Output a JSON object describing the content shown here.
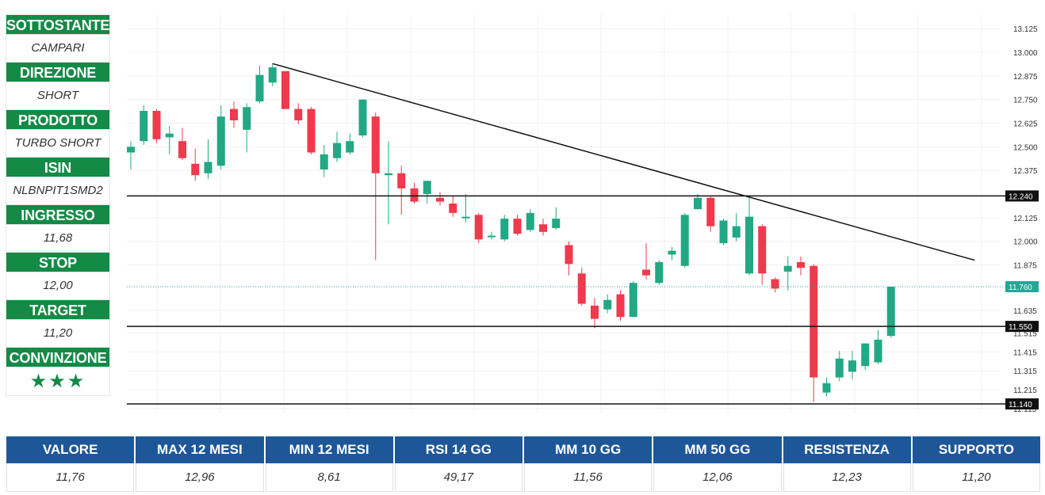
{
  "sidebar": {
    "items": [
      {
        "label": "SOTTOSTANTE",
        "value": "CAMPARI"
      },
      {
        "label": "DIREZIONE",
        "value": "SHORT"
      },
      {
        "label": "PRODOTTO",
        "value": "TURBO SHORT"
      },
      {
        "label": "ISIN",
        "value": "NLBNPIT1SMD2"
      },
      {
        "label": "INGRESSO",
        "value": "11,68"
      },
      {
        "label": "STOP",
        "value": "12,00"
      },
      {
        "label": "TARGET",
        "value": "11,20"
      },
      {
        "label": "CONVINZIONE",
        "value": "★★★"
      }
    ]
  },
  "stats": [
    {
      "label": "VALORE",
      "value": "11,76"
    },
    {
      "label": "MAX 12 MESI",
      "value": "12,96"
    },
    {
      "label": "MIN 12 MESI",
      "value": "8,61"
    },
    {
      "label": "RSI 14 GG",
      "value": "49,17"
    },
    {
      "label": "MM 10 GG",
      "value": "11,56"
    },
    {
      "label": "MM 50 GG",
      "value": "12,06"
    },
    {
      "label": "RESISTENZA",
      "value": "12,23"
    },
    {
      "label": "SUPPORTO",
      "value": "11,20"
    }
  ],
  "colors": {
    "up": "#22a884",
    "down": "#f0394c",
    "label_bg": "#138a46",
    "header_bg": "#1e5798"
  },
  "chart_data": {
    "type": "candlestick",
    "y_ticks": [
      "13.125",
      "13.000",
      "12.875",
      "12.750",
      "12.625",
      "12.500",
      "12.375",
      "12.125",
      "12.000",
      "11.875",
      "11.635",
      "11.515",
      "11.415",
      "11.315",
      "11.215",
      "11.115"
    ],
    "ylim": [
      11.1,
      13.15
    ],
    "grid": true,
    "price_lines": [
      {
        "label": "12.240",
        "value": 12.24,
        "style": "solid"
      },
      {
        "label": "11.760",
        "value": 11.76,
        "style": "dotted"
      },
      {
        "label": "11.550",
        "value": 11.55,
        "style": "solid"
      },
      {
        "label": "11.140",
        "value": 11.14,
        "style": "solid"
      }
    ],
    "trendline": [
      {
        "i": 11,
        "v": 12.94
      },
      {
        "i": 65.5,
        "v": 11.9
      }
    ],
    "candles": [
      {
        "o": 12.47,
        "h": 12.53,
        "l": 12.38,
        "c": 12.5
      },
      {
        "o": 12.53,
        "h": 12.72,
        "l": 12.51,
        "c": 12.69
      },
      {
        "o": 12.69,
        "h": 12.7,
        "l": 12.52,
        "c": 12.54
      },
      {
        "o": 12.55,
        "h": 12.61,
        "l": 12.46,
        "c": 12.57
      },
      {
        "o": 12.53,
        "h": 12.6,
        "l": 12.43,
        "c": 12.44
      },
      {
        "o": 12.41,
        "h": 12.49,
        "l": 12.32,
        "c": 12.35
      },
      {
        "o": 12.36,
        "h": 12.54,
        "l": 12.33,
        "c": 12.42
      },
      {
        "o": 12.4,
        "h": 12.72,
        "l": 12.38,
        "c": 12.66
      },
      {
        "o": 12.7,
        "h": 12.74,
        "l": 12.6,
        "c": 12.64
      },
      {
        "o": 12.59,
        "h": 12.73,
        "l": 12.47,
        "c": 12.71
      },
      {
        "o": 12.74,
        "h": 12.93,
        "l": 12.73,
        "c": 12.88
      },
      {
        "o": 12.84,
        "h": 12.94,
        "l": 12.82,
        "c": 12.92
      },
      {
        "o": 12.9,
        "h": 12.9,
        "l": 12.72,
        "c": 12.7
      },
      {
        "o": 12.7,
        "h": 12.73,
        "l": 12.62,
        "c": 12.64
      },
      {
        "o": 12.7,
        "h": 12.71,
        "l": 12.46,
        "c": 12.47
      },
      {
        "o": 12.38,
        "h": 12.51,
        "l": 12.34,
        "c": 12.46
      },
      {
        "o": 12.44,
        "h": 12.58,
        "l": 12.42,
        "c": 12.52
      },
      {
        "o": 12.47,
        "h": 12.57,
        "l": 12.46,
        "c": 12.53
      },
      {
        "o": 12.56,
        "h": 12.75,
        "l": 12.55,
        "c": 12.75
      },
      {
        "o": 12.66,
        "h": 12.68,
        "l": 11.9,
        "c": 12.36
      },
      {
        "o": 12.35,
        "h": 12.53,
        "l": 12.09,
        "c": 12.36
      },
      {
        "o": 12.36,
        "h": 12.4,
        "l": 12.14,
        "c": 12.28
      },
      {
        "o": 12.28,
        "h": 12.31,
        "l": 12.2,
        "c": 12.21
      },
      {
        "o": 12.25,
        "h": 12.32,
        "l": 12.2,
        "c": 12.32
      },
      {
        "o": 12.23,
        "h": 12.26,
        "l": 12.19,
        "c": 12.21
      },
      {
        "o": 12.2,
        "h": 12.24,
        "l": 12.13,
        "c": 12.15
      },
      {
        "o": 12.13,
        "h": 12.25,
        "l": 12.1,
        "c": 12.13
      },
      {
        "o": 12.14,
        "h": 12.15,
        "l": 11.99,
        "c": 12.01
      },
      {
        "o": 12.03,
        "h": 12.05,
        "l": 12.01,
        "c": 12.03
      },
      {
        "o": 12.01,
        "h": 12.14,
        "l": 12.0,
        "c": 12.12
      },
      {
        "o": 12.12,
        "h": 12.14,
        "l": 12.03,
        "c": 12.04
      },
      {
        "o": 12.06,
        "h": 12.17,
        "l": 12.05,
        "c": 12.15
      },
      {
        "o": 12.09,
        "h": 12.12,
        "l": 12.03,
        "c": 12.05
      },
      {
        "o": 12.07,
        "h": 12.18,
        "l": 12.06,
        "c": 12.12
      },
      {
        "o": 11.98,
        "h": 12.0,
        "l": 11.82,
        "c": 11.88
      },
      {
        "o": 11.83,
        "h": 11.86,
        "l": 11.66,
        "c": 11.67
      },
      {
        "o": 11.66,
        "h": 11.7,
        "l": 11.54,
        "c": 11.59
      },
      {
        "o": 11.64,
        "h": 11.72,
        "l": 11.62,
        "c": 11.69
      },
      {
        "o": 11.72,
        "h": 11.74,
        "l": 11.58,
        "c": 11.6
      },
      {
        "o": 11.6,
        "h": 11.79,
        "l": 11.6,
        "c": 11.78
      },
      {
        "o": 11.85,
        "h": 11.99,
        "l": 11.8,
        "c": 11.82
      },
      {
        "o": 11.78,
        "h": 11.9,
        "l": 11.77,
        "c": 11.89
      },
      {
        "o": 11.93,
        "h": 11.97,
        "l": 11.9,
        "c": 11.95
      },
      {
        "o": 11.87,
        "h": 12.15,
        "l": 11.86,
        "c": 12.14
      },
      {
        "o": 12.17,
        "h": 12.25,
        "l": 12.17,
        "c": 12.23
      },
      {
        "o": 12.23,
        "h": 12.24,
        "l": 12.05,
        "c": 12.08
      },
      {
        "o": 11.99,
        "h": 12.12,
        "l": 11.98,
        "c": 12.11
      },
      {
        "o": 12.02,
        "h": 12.15,
        "l": 12.0,
        "c": 12.08
      },
      {
        "o": 11.83,
        "h": 12.23,
        "l": 11.82,
        "c": 12.13
      },
      {
        "o": 12.08,
        "h": 12.09,
        "l": 11.77,
        "c": 11.83
      },
      {
        "o": 11.8,
        "h": 11.81,
        "l": 11.73,
        "c": 11.75
      },
      {
        "o": 11.84,
        "h": 11.92,
        "l": 11.74,
        "c": 11.87
      },
      {
        "o": 11.89,
        "h": 11.92,
        "l": 11.82,
        "c": 11.86
      },
      {
        "o": 11.87,
        "h": 11.88,
        "l": 11.15,
        "c": 11.28
      },
      {
        "o": 11.2,
        "h": 11.28,
        "l": 11.18,
        "c": 11.25
      },
      {
        "o": 11.28,
        "h": 11.42,
        "l": 11.26,
        "c": 11.38
      },
      {
        "o": 11.31,
        "h": 11.42,
        "l": 11.27,
        "c": 11.37
      },
      {
        "o": 11.34,
        "h": 11.46,
        "l": 11.32,
        "c": 11.46
      },
      {
        "o": 11.36,
        "h": 11.53,
        "l": 11.35,
        "c": 11.48
      },
      {
        "o": 11.5,
        "h": 11.76,
        "l": 11.49,
        "c": 11.76
      }
    ]
  }
}
